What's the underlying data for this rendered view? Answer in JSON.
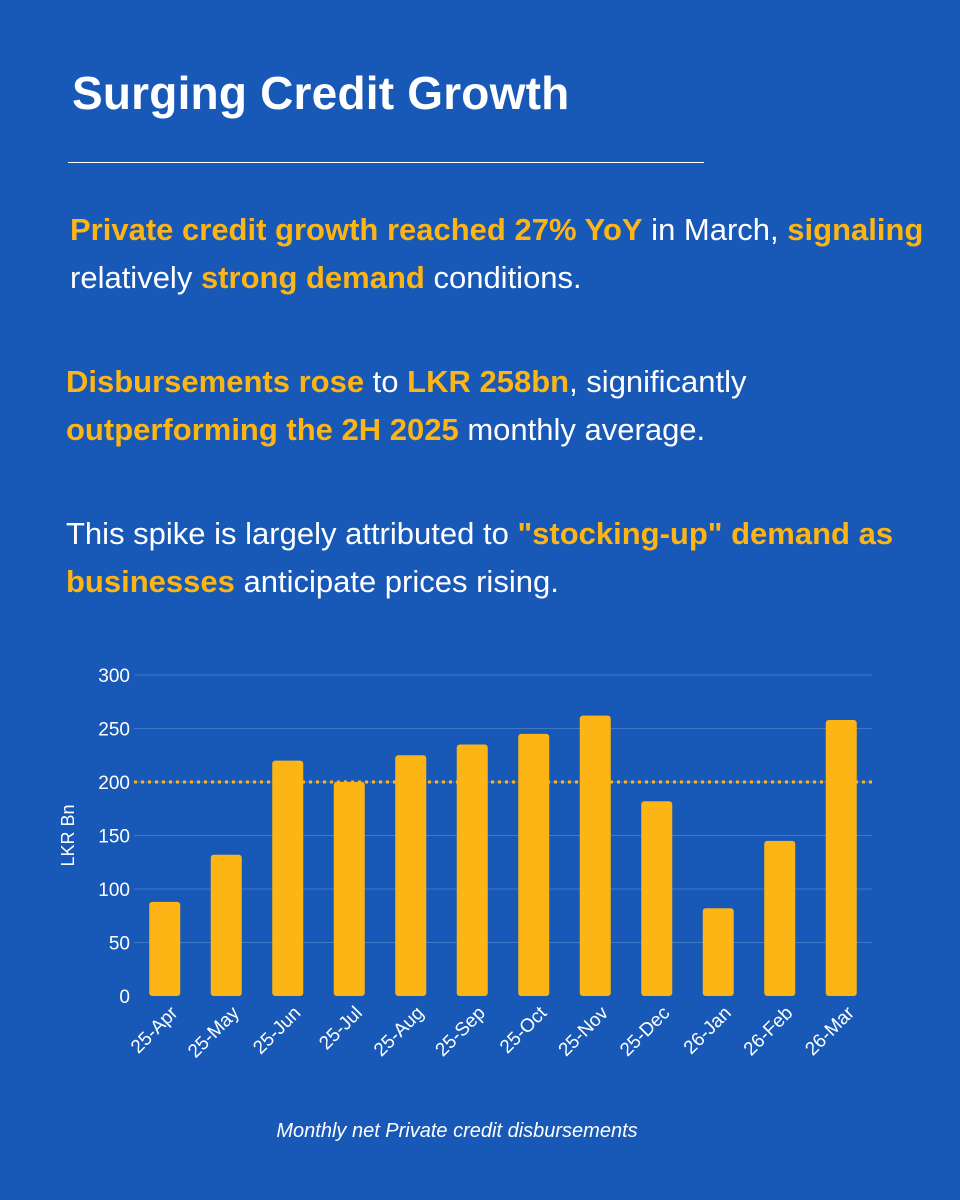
{
  "title": "Surging Credit Growth",
  "paragraphs": [
    [
      {
        "t": "Private credit growth reached 27% YoY",
        "hl": true
      },
      {
        "t": " in March, ",
        "hl": false
      },
      {
        "t": "signaling",
        "hl": true
      },
      {
        "t": " relatively ",
        "hl": false
      },
      {
        "t": "strong demand",
        "hl": true
      },
      {
        "t": " conditions.",
        "hl": false
      }
    ],
    [
      {
        "t": "Disbursements rose",
        "hl": true
      },
      {
        "t": " to ",
        "hl": false
      },
      {
        "t": "LKR 258bn",
        "hl": true
      },
      {
        "t": ", significantly ",
        "hl": false
      },
      {
        "t": "outperforming the 2H 2025",
        "hl": true
      },
      {
        "t": " monthly average.",
        "hl": false
      }
    ],
    [
      {
        "t": "This spike is largely attributed to ",
        "hl": false
      },
      {
        "t": "\"stocking-up\" demand as businesses",
        "hl": true
      },
      {
        "t": " anticipate prices rising.",
        "hl": false
      }
    ]
  ],
  "chart_data": {
    "type": "bar",
    "categories": [
      "25-Apr",
      "25-May",
      "25-Jun",
      "25-Jul",
      "25-Aug",
      "25-Sep",
      "25-Oct",
      "25-Nov",
      "25-Dec",
      "26-Jan",
      "26-Feb",
      "26-Mar"
    ],
    "values": [
      88,
      132,
      220,
      200,
      225,
      235,
      245,
      262,
      182,
      82,
      145,
      258
    ],
    "title": "",
    "xlabel": "",
    "ylabel": "LKR Bn",
    "ylim": [
      0,
      300
    ],
    "yticks": [
      0,
      50,
      100,
      150,
      200,
      250,
      300
    ],
    "reference_line": 200,
    "grid": true,
    "caption": "Monthly net Private credit disbursements"
  },
  "colors": {
    "background": "#1858b6",
    "highlight": "#fdb515",
    "bar": "#fdb515",
    "text": "#ffffff",
    "grid": "#3f78c6"
  }
}
